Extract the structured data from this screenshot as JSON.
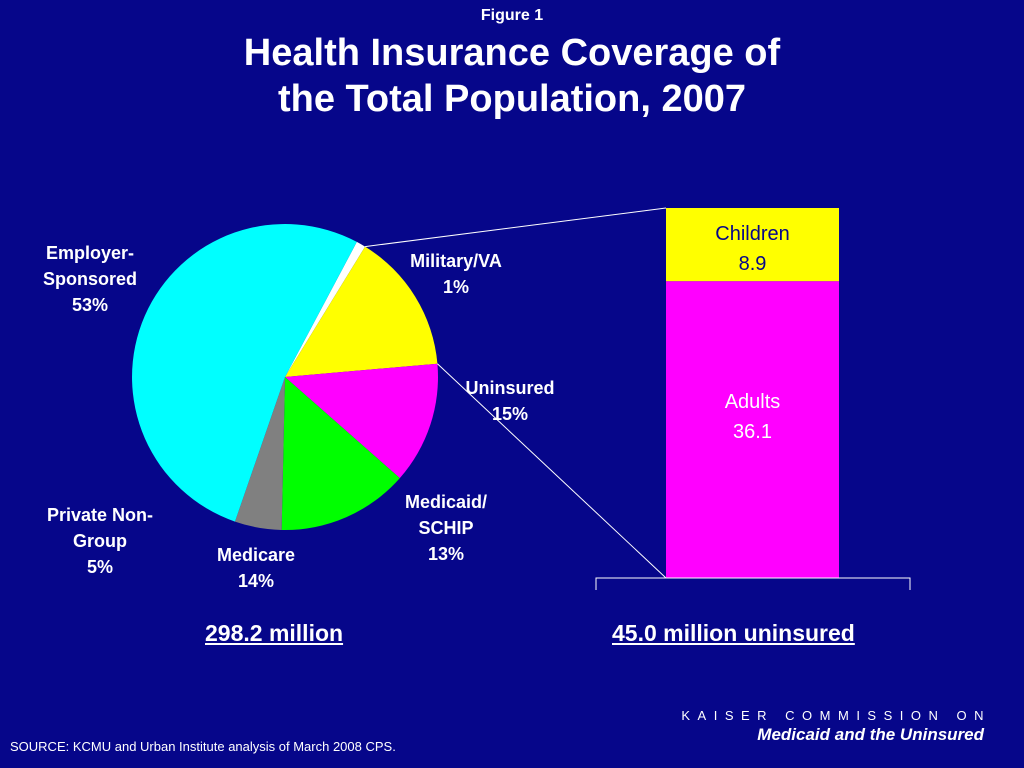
{
  "figure_label": "Figure 1",
  "title_line1": "Health Insurance Coverage of",
  "title_line2": "the Total Population, 2007",
  "colors": {
    "background": "#06068a",
    "employer": "#00ffff",
    "military": "#ffffff",
    "uninsured": "#ffff00",
    "medicaid": "#ff00ff",
    "medicare": "#00ff00",
    "private": "#808080"
  },
  "chart_data": [
    {
      "type": "pie",
      "slices": [
        {
          "label_lines": [
            "Military/VA",
            "1%"
          ],
          "value": 1,
          "color": "#ffffff"
        },
        {
          "label_lines": [
            "Uninsured",
            "15%"
          ],
          "value": 15,
          "color": "#ffff00"
        },
        {
          "label_lines": [
            "Medicaid/",
            "SCHIP",
            "13%"
          ],
          "value": 13,
          "color": "#ff00ff"
        },
        {
          "label_lines": [
            "Medicare",
            "14%"
          ],
          "value": 14,
          "color": "#00ff00"
        },
        {
          "label_lines": [
            "Private Non-",
            "Group",
            "5%"
          ],
          "value": 5,
          "color": "#808080"
        },
        {
          "label_lines": [
            "Employer-",
            "Sponsored",
            "53%"
          ],
          "value": 53,
          "color": "#00ffff"
        }
      ],
      "total_label": "298.2 million"
    },
    {
      "type": "bar",
      "stacked": true,
      "segments": [
        {
          "name": "Adults",
          "value": 36.1,
          "color": "#ff00ff"
        },
        {
          "name": "Children",
          "value": 8.9,
          "color": "#ffff00"
        }
      ],
      "total_label": "45.0 million uninsured"
    }
  ],
  "source": "SOURCE: KCMU and Urban Institute analysis of March 2008 CPS.",
  "logo": {
    "line1": "KAISER COMMISSION ON",
    "line2": "Medicaid and the Uninsured"
  }
}
